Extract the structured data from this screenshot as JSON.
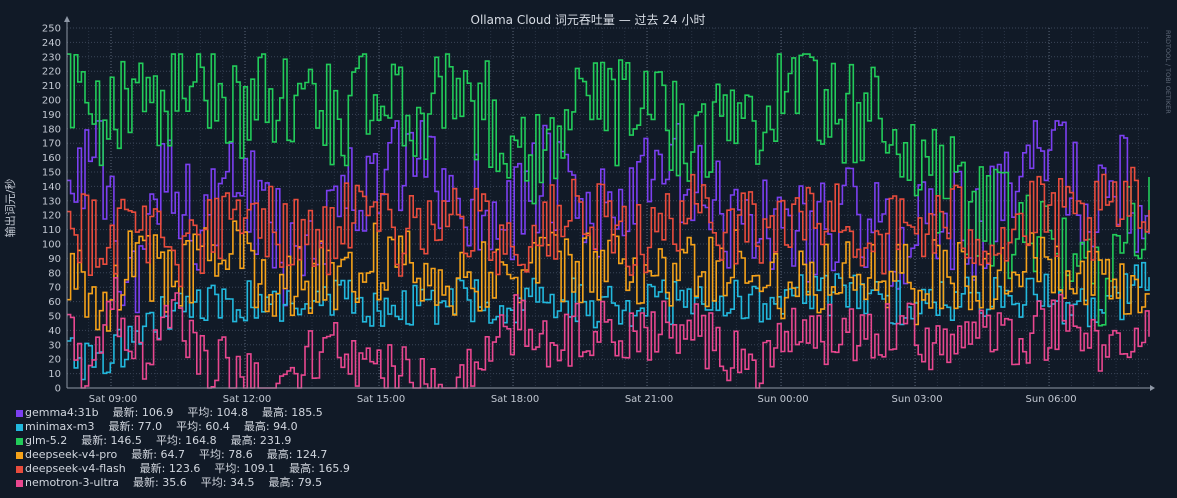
{
  "chart_data": {
    "type": "line",
    "title": "Ollama Cloud 词元吞吐量 — 过去 24 小时",
    "ylabel": "输出词元/秒",
    "watermark": "RRDTOOL / TOBI OETIKER",
    "ylim": [
      0,
      250
    ],
    "y_ticks": [
      0,
      10,
      20,
      30,
      40,
      50,
      60,
      70,
      80,
      90,
      100,
      110,
      120,
      130,
      140,
      150,
      160,
      170,
      180,
      190,
      200,
      210,
      220,
      230,
      240,
      250
    ],
    "xlim": [
      "Sat 08:10",
      "Mon 08:15"
    ],
    "x_tick_labels": [
      "Sat 09:00",
      "Sat 12:00",
      "Sat 15:00",
      "Sat 18:00",
      "Sat 21:00",
      "Sun 00:00",
      "Sun 03:00",
      "Sun 06:00"
    ],
    "grid": true,
    "legend_position": "bottom-left",
    "legend_labels": {
      "last": "最新:",
      "avg": "平均:",
      "max": "最高:"
    },
    "series": [
      {
        "name": "gemma4:31b",
        "color": "#7b3ff0",
        "last": "106.9",
        "avg": "104.8",
        "max": "185.5",
        "keypoints": [
          [
            0,
            160
          ],
          [
            0.03,
            150
          ],
          [
            0.06,
            60
          ],
          [
            0.09,
            165
          ],
          [
            0.12,
            110
          ],
          [
            0.16,
            140
          ],
          [
            0.2,
            95
          ],
          [
            0.24,
            125
          ],
          [
            0.28,
            140
          ],
          [
            0.32,
            155
          ],
          [
            0.36,
            135
          ],
          [
            0.4,
            120
          ],
          [
            0.44,
            145
          ],
          [
            0.48,
            115
          ],
          [
            0.52,
            130
          ],
          [
            0.56,
            150
          ],
          [
            0.6,
            120
          ],
          [
            0.64,
            115
          ],
          [
            0.68,
            110
          ],
          [
            0.72,
            120
          ],
          [
            0.76,
            100
          ],
          [
            0.8,
            120
          ],
          [
            0.84,
            110
          ],
          [
            0.88,
            140
          ],
          [
            0.91,
            185
          ],
          [
            0.94,
            120
          ],
          [
            0.97,
            150
          ],
          [
            1,
            106.9
          ]
        ]
      },
      {
        "name": "minimax-m3",
        "color": "#22b8dd",
        "last": "77.0",
        "avg": "60.4",
        "max": "94.0",
        "keypoints": [
          [
            0,
            30
          ],
          [
            0.03,
            10
          ],
          [
            0.06,
            40
          ],
          [
            0.1,
            55
          ],
          [
            0.15,
            60
          ],
          [
            0.2,
            55
          ],
          [
            0.25,
            60
          ],
          [
            0.3,
            55
          ],
          [
            0.35,
            60
          ],
          [
            0.4,
            60
          ],
          [
            0.45,
            65
          ],
          [
            0.5,
            55
          ],
          [
            0.55,
            60
          ],
          [
            0.6,
            60
          ],
          [
            0.65,
            60
          ],
          [
            0.7,
            65
          ],
          [
            0.75,
            60
          ],
          [
            0.8,
            60
          ],
          [
            0.85,
            65
          ],
          [
            0.9,
            65
          ],
          [
            0.95,
            50
          ],
          [
            1,
            77
          ]
        ]
      },
      {
        "name": "glm-5.2",
        "color": "#22cc5a",
        "last": "146.5",
        "avg": "164.8",
        "max": "231.9",
        "keypoints": [
          [
            0,
            205
          ],
          [
            0.03,
            170
          ],
          [
            0.06,
            220
          ],
          [
            0.09,
            200
          ],
          [
            0.12,
            215
          ],
          [
            0.16,
            195
          ],
          [
            0.2,
            205
          ],
          [
            0.24,
            190
          ],
          [
            0.28,
            200
          ],
          [
            0.32,
            190
          ],
          [
            0.36,
            215
          ],
          [
            0.4,
            175
          ],
          [
            0.44,
            165
          ],
          [
            0.48,
            200
          ],
          [
            0.52,
            190
          ],
          [
            0.56,
            185
          ],
          [
            0.6,
            180
          ],
          [
            0.64,
            195
          ],
          [
            0.68,
            220
          ],
          [
            0.72,
            185
          ],
          [
            0.76,
            190
          ],
          [
            0.8,
            140
          ],
          [
            0.84,
            130
          ],
          [
            0.88,
            100
          ],
          [
            0.92,
            90
          ],
          [
            0.96,
            80
          ],
          [
            1,
            146.5
          ]
        ]
      },
      {
        "name": "deepseek-v4-pro",
        "color": "#f5a21a",
        "last": "64.7",
        "avg": "78.6",
        "max": "124.7",
        "keypoints": [
          [
            0,
            80
          ],
          [
            0.03,
            60
          ],
          [
            0.06,
            90
          ],
          [
            0.1,
            75
          ],
          [
            0.14,
            95
          ],
          [
            0.18,
            80
          ],
          [
            0.22,
            70
          ],
          [
            0.26,
            85
          ],
          [
            0.3,
            90
          ],
          [
            0.34,
            75
          ],
          [
            0.38,
            80
          ],
          [
            0.42,
            85
          ],
          [
            0.46,
            80
          ],
          [
            0.5,
            85
          ],
          [
            0.54,
            75
          ],
          [
            0.58,
            80
          ],
          [
            0.62,
            85
          ],
          [
            0.66,
            75
          ],
          [
            0.7,
            80
          ],
          [
            0.74,
            90
          ],
          [
            0.78,
            70
          ],
          [
            0.82,
            80
          ],
          [
            0.86,
            75
          ],
          [
            0.9,
            85
          ],
          [
            0.94,
            70
          ],
          [
            0.98,
            60
          ],
          [
            1,
            64.7
          ]
        ]
      },
      {
        "name": "deepseek-v4-flash",
        "color": "#e84c3d",
        "last": "123.6",
        "avg": "109.1",
        "max": "165.9",
        "keypoints": [
          [
            0,
            125
          ],
          [
            0.03,
            100
          ],
          [
            0.06,
            120
          ],
          [
            0.1,
            95
          ],
          [
            0.14,
            110
          ],
          [
            0.18,
            120
          ],
          [
            0.22,
            100
          ],
          [
            0.26,
            115
          ],
          [
            0.3,
            105
          ],
          [
            0.34,
            120
          ],
          [
            0.38,
            110
          ],
          [
            0.42,
            100
          ],
          [
            0.46,
            120
          ],
          [
            0.5,
            110
          ],
          [
            0.54,
            105
          ],
          [
            0.58,
            120
          ],
          [
            0.62,
            115
          ],
          [
            0.66,
            110
          ],
          [
            0.7,
            120
          ],
          [
            0.74,
            105
          ],
          [
            0.78,
            110
          ],
          [
            0.82,
            115
          ],
          [
            0.86,
            105
          ],
          [
            0.9,
            120
          ],
          [
            0.94,
            110
          ],
          [
            0.97,
            125
          ],
          [
            1,
            123.6
          ]
        ]
      },
      {
        "name": "nemotron-3-ultra",
        "color": "#e8478f",
        "last": "35.6",
        "avg": "34.5",
        "max": "79.5",
        "keypoints": [
          [
            0,
            40
          ],
          [
            0.02,
            5
          ],
          [
            0.04,
            60
          ],
          [
            0.07,
            25
          ],
          [
            0.1,
            45
          ],
          [
            0.13,
            20
          ],
          [
            0.16,
            5
          ],
          [
            0.2,
            3
          ],
          [
            0.24,
            30
          ],
          [
            0.27,
            15
          ],
          [
            0.3,
            10
          ],
          [
            0.33,
            2
          ],
          [
            0.36,
            3
          ],
          [
            0.39,
            35
          ],
          [
            0.42,
            45
          ],
          [
            0.45,
            30
          ],
          [
            0.48,
            40
          ],
          [
            0.52,
            35
          ],
          [
            0.56,
            45
          ],
          [
            0.6,
            30
          ],
          [
            0.64,
            15
          ],
          [
            0.68,
            40
          ],
          [
            0.72,
            35
          ],
          [
            0.76,
            45
          ],
          [
            0.8,
            30
          ],
          [
            0.84,
            40
          ],
          [
            0.88,
            35
          ],
          [
            0.92,
            45
          ],
          [
            0.96,
            25
          ],
          [
            1,
            35.6
          ]
        ]
      }
    ]
  }
}
